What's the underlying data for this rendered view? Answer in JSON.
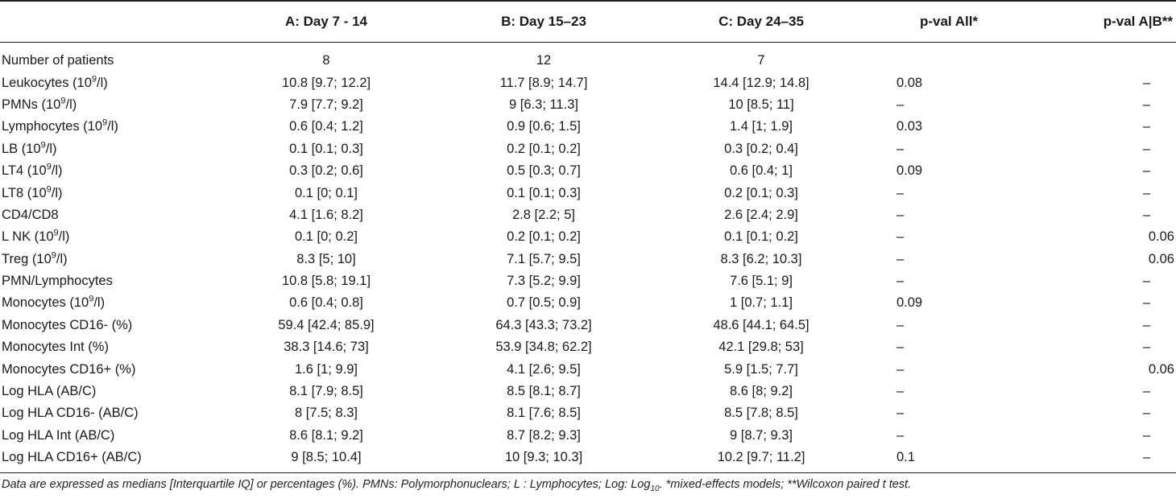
{
  "table": {
    "headers": {
      "label": "",
      "a": "A: Day 7 - 14",
      "b": "B: Day 15–23",
      "c": "C: Day 24–35",
      "pall": "p-val All*",
      "pab": "p-val A|B**"
    },
    "rows": [
      {
        "pre": "Number of patients",
        "sup": "",
        "post": "",
        "a": "8",
        "b": "12",
        "c": "7",
        "pall": "",
        "pab": ""
      },
      {
        "pre": "Leukocytes (10",
        "sup": "9",
        "post": "/l)",
        "a": "10.8 [9.7; 12.2]",
        "b": "11.7 [8.9; 14.7]",
        "c": "14.4 [12.9; 14.8]",
        "pall": "0.08",
        "pab": "–"
      },
      {
        "pre": "PMNs (10",
        "sup": "9",
        "post": "/l)",
        "a": "7.9 [7.7; 9.2]",
        "b": "9 [6.3; 11.3]",
        "c": "10 [8.5; 11]",
        "pall": "–",
        "pab": "–"
      },
      {
        "pre": "Lymphocytes (10",
        "sup": "9",
        "post": "/l)",
        "a": "0.6 [0.4; 1.2]",
        "b": "0.9 [0.6; 1.5]",
        "c": "1.4 [1; 1.9]",
        "pall": "0.03",
        "pab": "–"
      },
      {
        "pre": "LB (10",
        "sup": "9",
        "post": "/l)",
        "a": "0.1 [0.1; 0.3]",
        "b": "0.2 [0.1; 0.2]",
        "c": "0.3 [0.2; 0.4]",
        "pall": "–",
        "pab": "–"
      },
      {
        "pre": "LT4 (10",
        "sup": "9",
        "post": "/l)",
        "a": "0.3 [0.2; 0.6]",
        "b": "0.5 [0.3; 0.7]",
        "c": "0.6 [0.4; 1]",
        "pall": "0.09",
        "pab": "–"
      },
      {
        "pre": "LT8 (10",
        "sup": "9",
        "post": "/l)",
        "a": "0.1 [0; 0.1]",
        "b": "0.1 [0.1; 0.3]",
        "c": "0.2 [0.1; 0.3]",
        "pall": "–",
        "pab": "–"
      },
      {
        "pre": "CD4/CD8",
        "sup": "",
        "post": "",
        "a": "4.1 [1.6; 8.2]",
        "b": "2.8 [2.2; 5]",
        "c": "2.6 [2.4; 2.9]",
        "pall": "–",
        "pab": "–"
      },
      {
        "pre": "L NK (10",
        "sup": "9",
        "post": "/l)",
        "a": "0.1 [0; 0.2]",
        "b": "0.2 [0.1; 0.2]",
        "c": "0.1 [0.1; 0.2]",
        "pall": "–",
        "pab": "0.06"
      },
      {
        "pre": "Treg (10",
        "sup": "9",
        "post": "/l)",
        "a": "8.3 [5; 10]",
        "b": "7.1 [5.7; 9.5]",
        "c": "8.3 [6.2; 10.3]",
        "pall": "–",
        "pab": "0.06"
      },
      {
        "pre": "PMN/Lymphocytes",
        "sup": "",
        "post": "",
        "a": "10.8 [5.8; 19.1]",
        "b": "7.3 [5.2; 9.9]",
        "c": "7.6 [5.1; 9]",
        "pall": "–",
        "pab": "–"
      },
      {
        "pre": "Monocytes (10",
        "sup": "9",
        "post": "/l)",
        "a": "0.6 [0.4; 0.8]",
        "b": "0.7 [0.5; 0.9]",
        "c": "1 [0.7; 1.1]",
        "pall": "0.09",
        "pab": "–"
      },
      {
        "pre": "Monocytes CD16- (%)",
        "sup": "",
        "post": "",
        "a": "59.4 [42.4; 85.9]",
        "b": "64.3 [43.3; 73.2]",
        "c": "48.6 [44.1; 64.5]",
        "pall": "–",
        "pab": "–"
      },
      {
        "pre": "Monocytes Int (%)",
        "sup": "",
        "post": "",
        "a": "38.3 [14.6; 73]",
        "b": "53.9 [34.8; 62.2]",
        "c": "42.1 [29.8; 53]",
        "pall": "–",
        "pab": "–"
      },
      {
        "pre": "Monocytes CD16+ (%)",
        "sup": "",
        "post": "",
        "a": "1.6 [1; 9.9]",
        "b": "4.1 [2.6; 9.5]",
        "c": "5.9 [1.5; 7.7]",
        "pall": "–",
        "pab": "0.06"
      },
      {
        "pre": "Log HLA (AB/C)",
        "sup": "",
        "post": "",
        "a": "8.1 [7.9; 8.5]",
        "b": "8.5 [8.1; 8.7]",
        "c": "8.6 [8; 9.2]",
        "pall": "–",
        "pab": "–"
      },
      {
        "pre": "Log HLA CD16- (AB/C)",
        "sup": "",
        "post": "",
        "a": "8 [7.5; 8.3]",
        "b": "8.1 [7.6; 8.5]",
        "c": "8.5 [7.8; 8.5]",
        "pall": "–",
        "pab": "–"
      },
      {
        "pre": "Log HLA Int (AB/C)",
        "sup": "",
        "post": "",
        "a": "8.6 [8.1; 9.2]",
        "b": "8.7 [8.2; 9.3]",
        "c": "9 [8.7; 9.3]",
        "pall": "–",
        "pab": "–"
      },
      {
        "pre": "Log HLA CD16+ (AB/C)",
        "sup": "",
        "post": "",
        "a": "9 [8.5; 10.4]",
        "b": "10 [9.3; 10.3]",
        "c": "10.2 [9.7; 11.2]",
        "pall": "0.1",
        "pab": "–"
      }
    ]
  },
  "footnote": {
    "pre": "Data are expressed as medians [Interquartile IQ] or percentages (%). PMNs: Polymorphonuclears; L : Lymphocytes; Log: Log",
    "sub": "10",
    "post": ". *mixed-effects models; **Wilcoxon paired t test."
  }
}
